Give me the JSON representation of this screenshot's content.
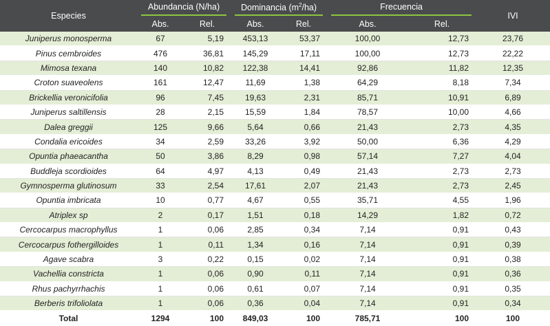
{
  "headers": {
    "species": "Especies",
    "abundance": "Abundancia (N/ha)",
    "dominance_pre": "Dominancia (m",
    "dominance_sup": "2",
    "dominance_post": "/ha)",
    "frequency": "Frecuencia",
    "ivi": "IVI",
    "abs": "Abs.",
    "rel": "Rel."
  },
  "rows": [
    {
      "species": "Juniperus monosperma",
      "ab_abs": "67",
      "ab_rel": "5,19",
      "dom_abs": "453,13",
      "dom_rel": "53,37",
      "fr_abs": "100,00",
      "fr_rel": "12,73",
      "ivi": "23,76"
    },
    {
      "species": "Pinus cembroides",
      "ab_abs": "476",
      "ab_rel": "36,81",
      "dom_abs": "145,29",
      "dom_rel": "17,11",
      "fr_abs": "100,00",
      "fr_rel": "12,73",
      "ivi": "22,22"
    },
    {
      "species": "Mimosa texana",
      "ab_abs": "140",
      "ab_rel": "10,82",
      "dom_abs": "122,38",
      "dom_rel": "14,41",
      "fr_abs": "92,86",
      "fr_rel": "11,82",
      "ivi": "12,35"
    },
    {
      "species": "Croton suaveolens",
      "ab_abs": "161",
      "ab_rel": "12,47",
      "dom_abs": "11,69",
      "dom_rel": "1,38",
      "fr_abs": "64,29",
      "fr_rel": "8,18",
      "ivi": "7,34"
    },
    {
      "species": "Brickellia veronicifolia",
      "ab_abs": "96",
      "ab_rel": "7,45",
      "dom_abs": "19,63",
      "dom_rel": "2,31",
      "fr_abs": "85,71",
      "fr_rel": "10,91",
      "ivi": "6,89"
    },
    {
      "species": "Juniperus saltillensis",
      "ab_abs": "28",
      "ab_rel": "2,15",
      "dom_abs": "15,59",
      "dom_rel": "1,84",
      "fr_abs": "78,57",
      "fr_rel": "10,00",
      "ivi": "4,66"
    },
    {
      "species": "Dalea greggii",
      "ab_abs": "125",
      "ab_rel": "9,66",
      "dom_abs": "5,64",
      "dom_rel": "0,66",
      "fr_abs": "21,43",
      "fr_rel": "2,73",
      "ivi": "4,35"
    },
    {
      "species": "Condalia ericoides",
      "ab_abs": "34",
      "ab_rel": "2,59",
      "dom_abs": "33,26",
      "dom_rel": "3,92",
      "fr_abs": "50,00",
      "fr_rel": "6,36",
      "ivi": "4,29"
    },
    {
      "species": "Opuntia phaeacantha",
      "ab_abs": "50",
      "ab_rel": "3,86",
      "dom_abs": "8,29",
      "dom_rel": "0,98",
      "fr_abs": "57,14",
      "fr_rel": "7,27",
      "ivi": "4,04"
    },
    {
      "species": "Buddleja scordioides",
      "ab_abs": "64",
      "ab_rel": "4,97",
      "dom_abs": "4,13",
      "dom_rel": "0,49",
      "fr_abs": "21,43",
      "fr_rel": "2,73",
      "ivi": "2,73"
    },
    {
      "species": "Gymnosperma glutinosum",
      "ab_abs": "33",
      "ab_rel": "2,54",
      "dom_abs": "17,61",
      "dom_rel": "2,07",
      "fr_abs": "21,43",
      "fr_rel": "2,73",
      "ivi": "2,45"
    },
    {
      "species": "Opuntia imbricata",
      "ab_abs": "10",
      "ab_rel": "0,77",
      "dom_abs": "4,67",
      "dom_rel": "0,55",
      "fr_abs": "35,71",
      "fr_rel": "4,55",
      "ivi": "1,96"
    },
    {
      "species": "Atriplex sp",
      "ab_abs": "2",
      "ab_rel": "0,17",
      "dom_abs": "1,51",
      "dom_rel": "0,18",
      "fr_abs": "14,29",
      "fr_rel": "1,82",
      "ivi": "0,72"
    },
    {
      "species": "Cercocarpus macrophyllus",
      "ab_abs": "1",
      "ab_rel": "0,06",
      "dom_abs": "2,85",
      "dom_rel": "0,34",
      "fr_abs": "7,14",
      "fr_rel": "0,91",
      "ivi": "0,43"
    },
    {
      "species": "Cercocarpus fothergilloides",
      "ab_abs": "1",
      "ab_rel": "0,11",
      "dom_abs": "1,34",
      "dom_rel": "0,16",
      "fr_abs": "7,14",
      "fr_rel": "0,91",
      "ivi": "0,39"
    },
    {
      "species": "Agave scabra",
      "ab_abs": "3",
      "ab_rel": "0,22",
      "dom_abs": "0,15",
      "dom_rel": "0,02",
      "fr_abs": "7,14",
      "fr_rel": "0,91",
      "ivi": "0,38"
    },
    {
      "species": "Vachellia constricta",
      "ab_abs": "1",
      "ab_rel": "0,06",
      "dom_abs": "0,90",
      "dom_rel": "0,11",
      "fr_abs": "7,14",
      "fr_rel": "0,91",
      "ivi": "0,36"
    },
    {
      "species": "Rhus pachyrrhachis",
      "ab_abs": "1",
      "ab_rel": "0,06",
      "dom_abs": "0,61",
      "dom_rel": "0,07",
      "fr_abs": "7,14",
      "fr_rel": "0,91",
      "ivi": "0,35"
    },
    {
      "species": "Berberis trifoliolata",
      "ab_abs": "1",
      "ab_rel": "0,06",
      "dom_abs": "0,36",
      "dom_rel": "0,04",
      "fr_abs": "7,14",
      "fr_rel": "0,91",
      "ivi": "0,34"
    }
  ],
  "total": {
    "label": "Total",
    "ab_abs": "1294",
    "ab_rel": "100",
    "dom_abs": "849,03",
    "dom_rel": "100",
    "fr_abs": "785,71",
    "fr_rel": "100",
    "ivi": "100"
  },
  "colors": {
    "header_bg": "#4a4b4d",
    "header_accent": "#8dc63f",
    "row_stripe": "#e4eed6"
  }
}
